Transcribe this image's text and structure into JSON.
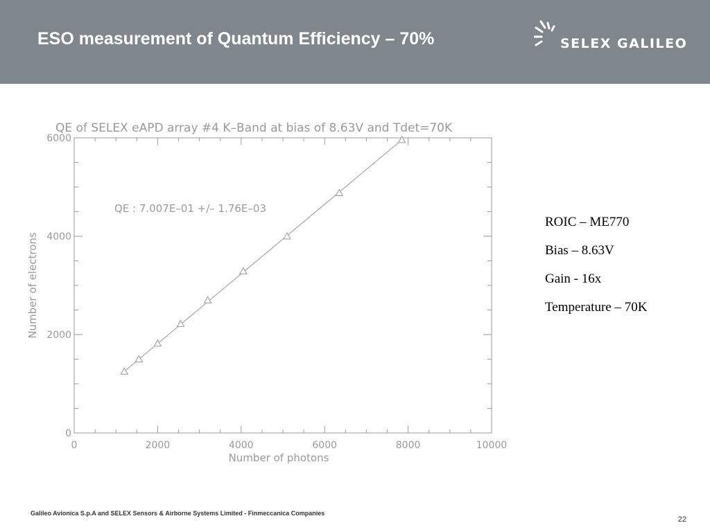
{
  "slide": {
    "title": "ESO measurement of Quantum Efficiency – 70%",
    "logo_text": "SELEX GALILEO",
    "notes": [
      "ROIC – ME770",
      "Bias – 8.63V",
      "Gain - 16x",
      "Temperature – 70K"
    ],
    "footer": "Galileo Avionica S.p.A and SELEX Sensors & Airborne Systems Limited - Finmeccanica Companies",
    "page_number": "22"
  },
  "colors": {
    "header_bg": "#7f878c",
    "chart_ink": "#9a9a9a"
  },
  "chart_data": {
    "type": "scatter",
    "title": "QE of SELEX eAPD array #4 K–Band at bias of 8.63V and Tdet=70K",
    "xlabel": "Number of photons",
    "ylabel": "Number of electrons",
    "xlim": [
      0,
      10000
    ],
    "ylim": [
      0,
      6000
    ],
    "xticks": [
      0,
      2000,
      4000,
      6000,
      8000,
      10000
    ],
    "yticks": [
      0,
      2000,
      4000,
      6000
    ],
    "grid": false,
    "marker": "triangle",
    "annotation": "QE :  7.007E–01 +/–  1.76E–03",
    "points": [
      {
        "x": 1200,
        "y": 1250
      },
      {
        "x": 1550,
        "y": 1500
      },
      {
        "x": 2000,
        "y": 1820
      },
      {
        "x": 2550,
        "y": 2220
      },
      {
        "x": 3200,
        "y": 2700
      },
      {
        "x": 4050,
        "y": 3290
      },
      {
        "x": 5100,
        "y": 4000
      },
      {
        "x": 6350,
        "y": 4880
      },
      {
        "x": 7850,
        "y": 5960
      }
    ],
    "fit_line": {
      "x": [
        1200,
        7850
      ],
      "y": [
        1250,
        5960
      ]
    }
  }
}
